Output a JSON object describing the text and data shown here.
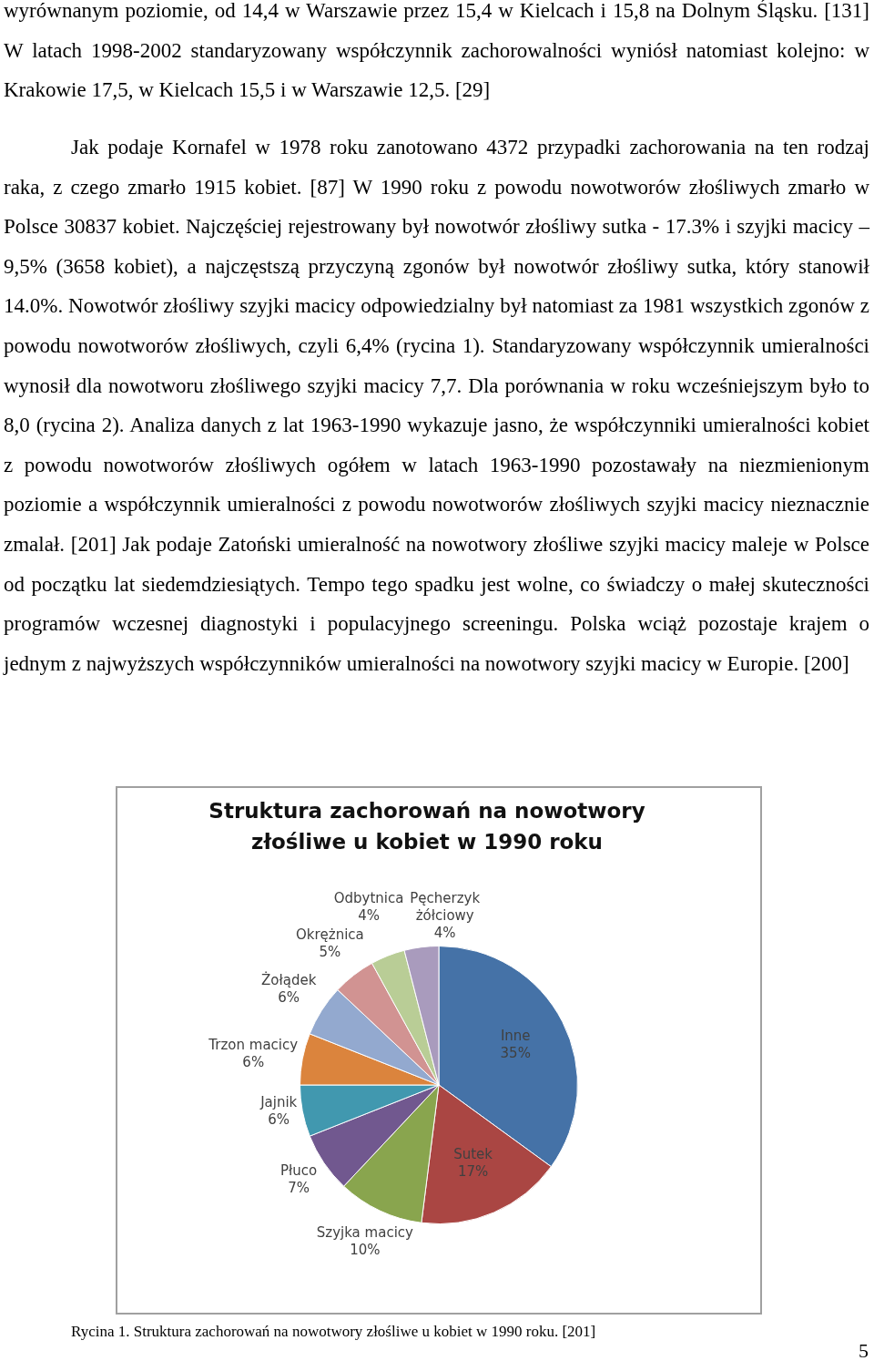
{
  "chart_data": {
    "type": "pie",
    "title": "Struktura zachorowań na nowotwory złośliwe u kobiet w 1990 roku",
    "categories": [
      "Inne",
      "Sutek",
      "Szyjka macicy",
      "Płuco",
      "Jajnik",
      "Trzon macicy",
      "Żołądek",
      "Okrężnica",
      "Odbytnica",
      "Pęcherzyk żółciowy"
    ],
    "values": [
      35,
      17,
      10,
      7,
      6,
      6,
      6,
      5,
      4,
      4
    ],
    "value_labels": [
      "35%",
      "17%",
      "10%",
      "7%",
      "6%",
      "6%",
      "6%",
      "5%",
      "4%",
      "4%"
    ],
    "colors": [
      "#4572a7",
      "#aa4643",
      "#89a54e",
      "#71588f",
      "#4198af",
      "#db843d",
      "#93a9cf",
      "#d19392",
      "#b9cd96",
      "#a99bbd"
    ],
    "legend": false,
    "annotations": [
      "wyrównanym poziomie, od 14,4 w Warszawie przez 15,4 w Kielcach i 15,8 na Dolnym Śląsku. [131] W latach 1998-2002 standaryzowany współczynnik zachorowalności wyniósł natomiast kolejno: w Krakowie 17,5, w Kielcach 15,5 i w Warszawie 12,5. [29]",
      "Jak podaje Kornafel w 1978 roku zanotowano 4372 przypadki zachorowania na ten rodzaj raka, z czego zmarło 1915 kobiet. [87] W 1990 roku z powodu nowotworów złośliwych zmarło w Polsce 30837 kobiet. Najczęściej rejestrowany był nowotwór złośliwy sutka - 17.3% i szyjki macicy – 9,5% (3658 kobiet), a najczęstszą przyczyną zgonów był nowotwór złośliwy sutka, który stanowił 14.0%. Nowotwór złośliwy szyjki macicy odpowiedzialny był natomiast za 1981 wszystkich zgonów z powodu nowotworów złośliwych, czyli 6,4% (rycina 1). Standaryzowany współczynnik umieralności wynosił dla nowotworu złośliwego szyjki macicy 7,7. Dla porównania w roku wcześniejszym było to 8,0 (rycina 2). Analiza danych z lat 1963-1990 wykazuje jasno, że współczynniki umieralności kobiet z powodu nowotworów złośliwych ogółem w latach 1963-1990 pozostawały na niezmienionym poziomie a współczynnik umieralności z powodu nowotworów złośliwych szyjki macicy nieznacznie zmalał. [201] Jak podaje Zatoński umieralność na nowotwory złośliwe szyjki macicy maleje w Polsce od początku lat siedemdziesiątych. Tempo tego spadku jest wolne, co świadczy o małej skuteczności programów wczesnej diagnostyki i populacyjnego screeningu. Polska wciąż pozostaje krajem o jednym z najwyższych współczynników umieralności na nowotwory szyjki macicy w Europie. [200]",
      "Rycina 1. Struktura zachorowań na nowotwory złośliwe u kobiet w 1990 roku. [201]",
      "5"
    ]
  }
}
